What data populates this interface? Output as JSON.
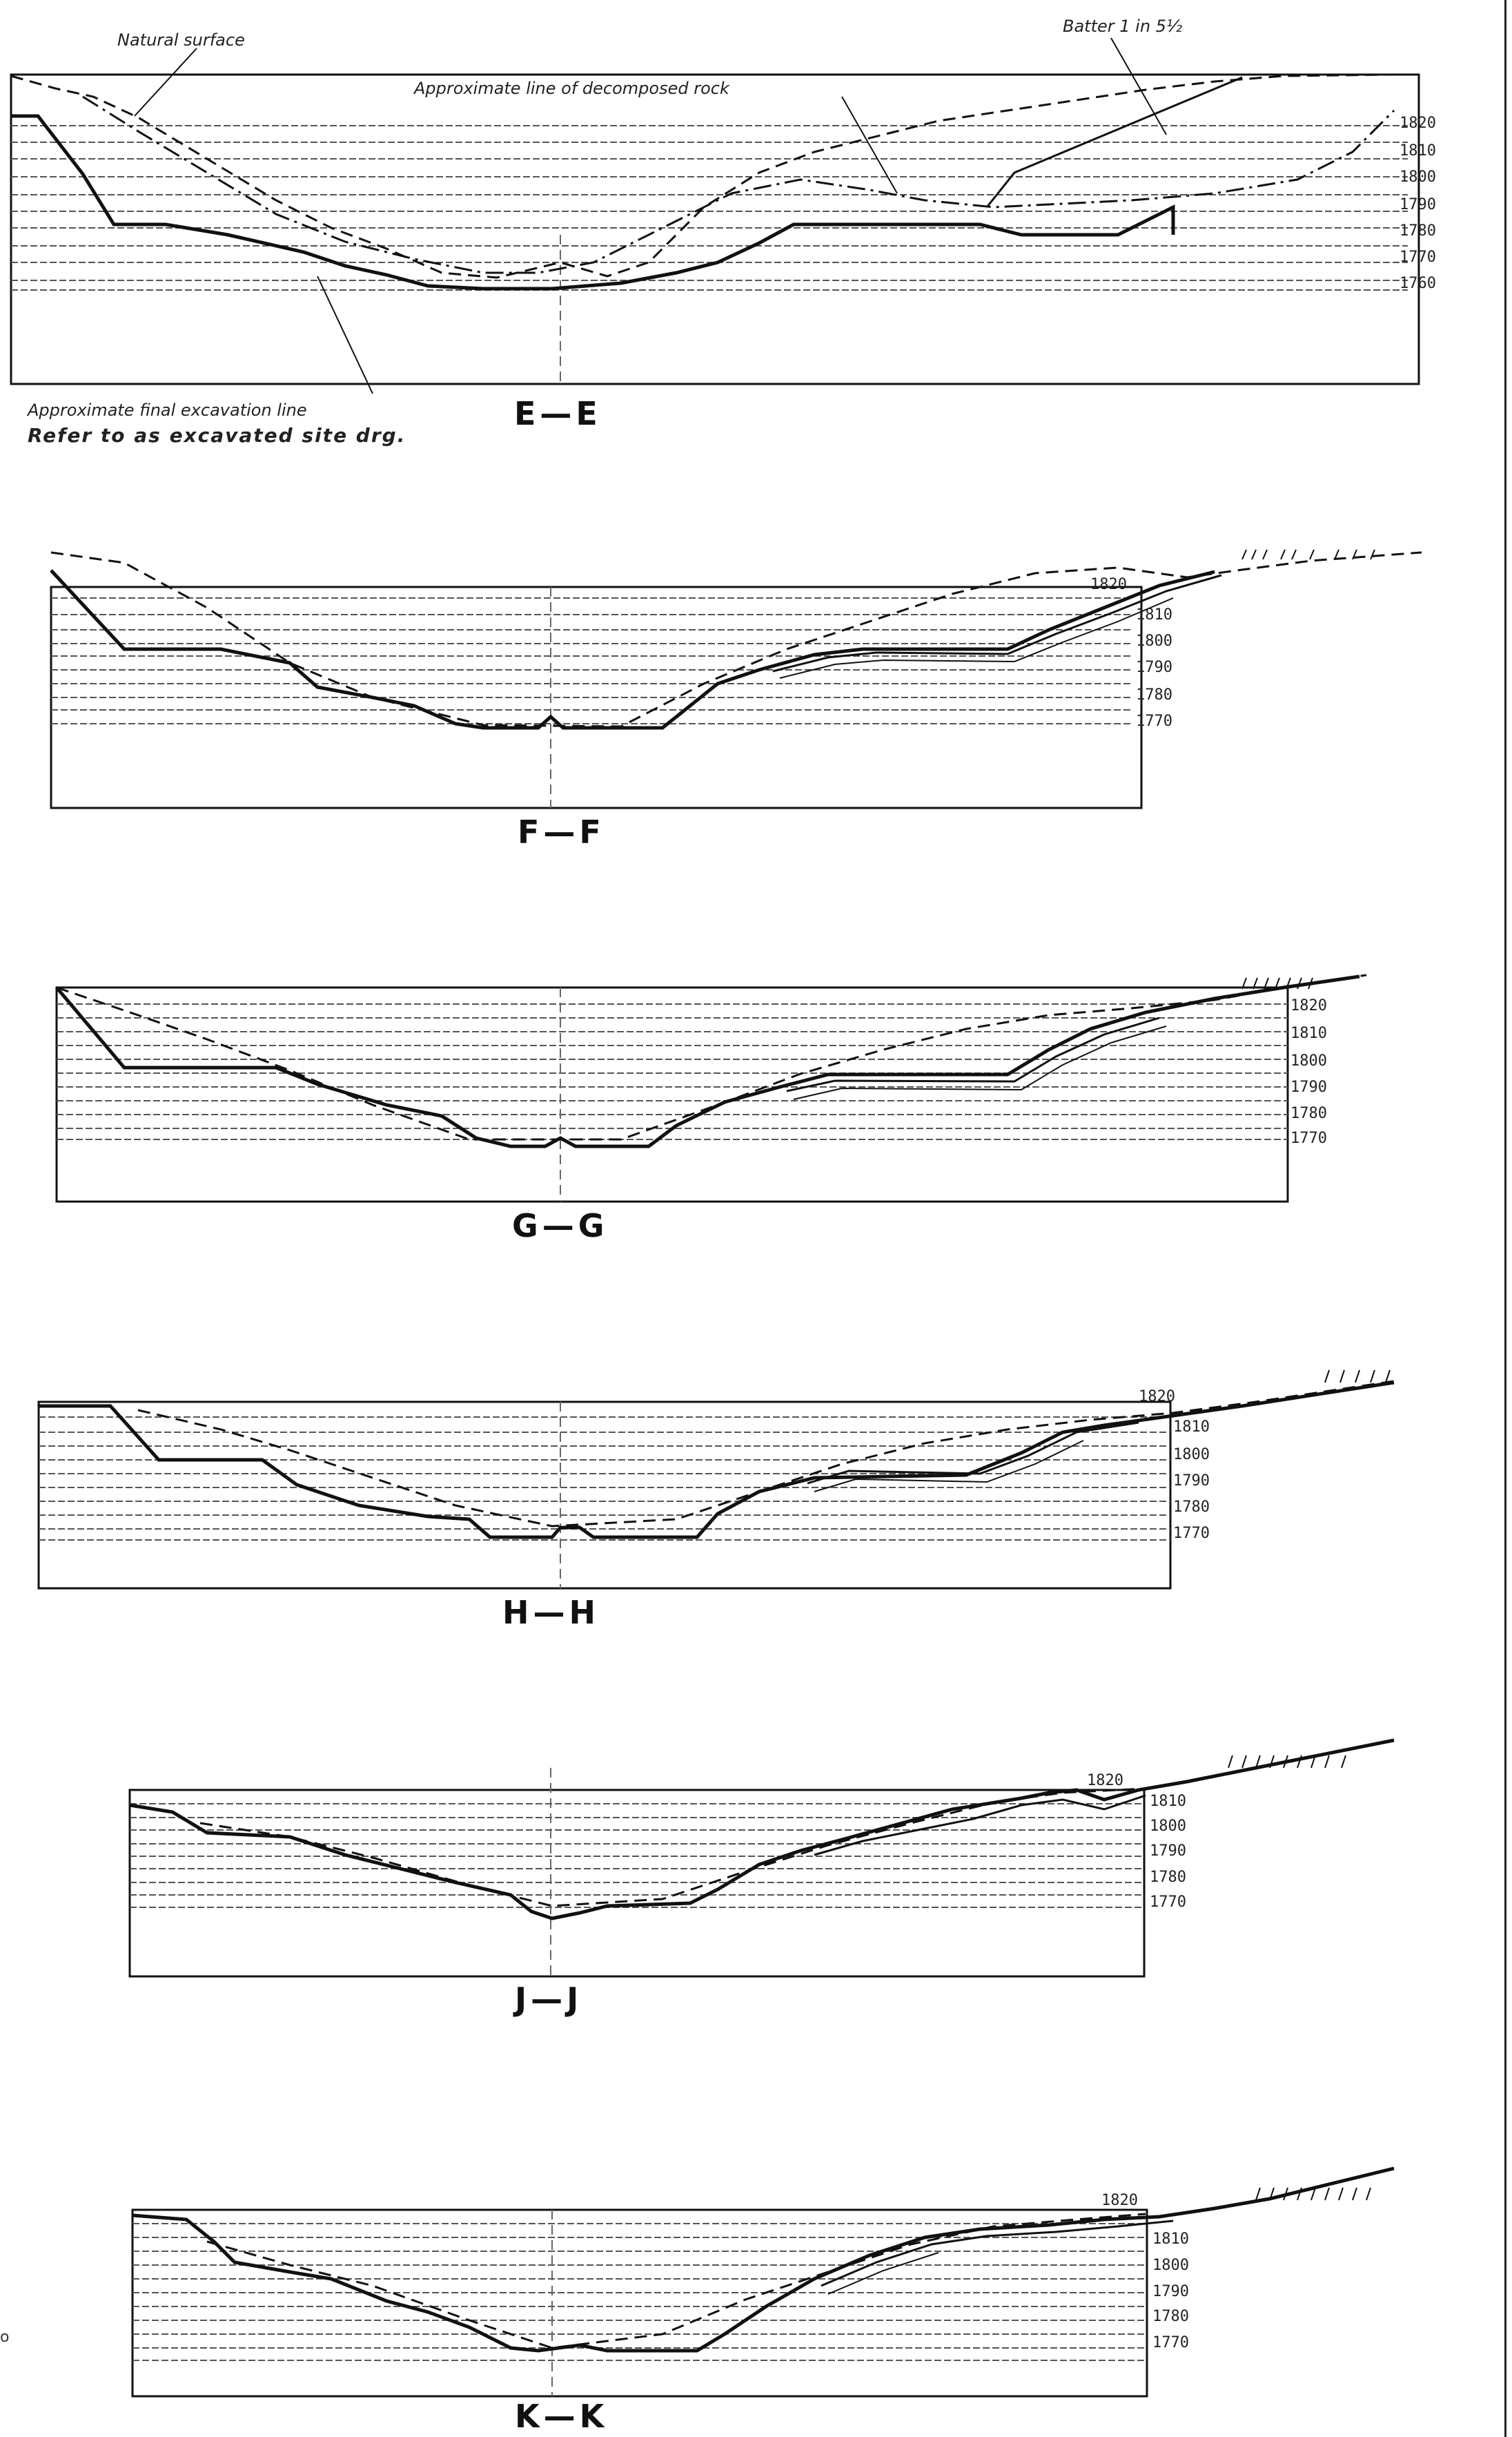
{
  "sheet": {
    "notes": {
      "natural_surface": "Natural surface",
      "batter": "Batter 1 in 5½",
      "decomposed_rock": "Approximate line of decomposed rock",
      "final_excavation": "Approximate final excavation line",
      "refer": "Refer to as excavated site drg."
    },
    "stray_mark": "o"
  },
  "sections": [
    {
      "id": "EE",
      "title": "E—E",
      "elevations": [
        "1820",
        "1810",
        "1800",
        "1790",
        "1780",
        "1770",
        "1760"
      ]
    },
    {
      "id": "FF",
      "title": "F—F",
      "elevations": [
        "1820",
        "1810",
        "1800",
        "1790",
        "1780",
        "1770"
      ]
    },
    {
      "id": "GG",
      "title": "G—G",
      "elevations": [
        "1820",
        "1810",
        "1800",
        "1790",
        "1780",
        "1770"
      ]
    },
    {
      "id": "HH",
      "title": "H—H",
      "elevations": [
        "1820",
        "1810",
        "1800",
        "1790",
        "1780",
        "1770"
      ]
    },
    {
      "id": "JJ",
      "title": "J—J",
      "elevations": [
        "1820",
        "1810",
        "1800",
        "1790",
        "1780",
        "1770"
      ]
    },
    {
      "id": "KK",
      "title": "K—K",
      "elevations": [
        "1820",
        "1810",
        "1800",
        "1790",
        "1780",
        "1770"
      ]
    }
  ]
}
